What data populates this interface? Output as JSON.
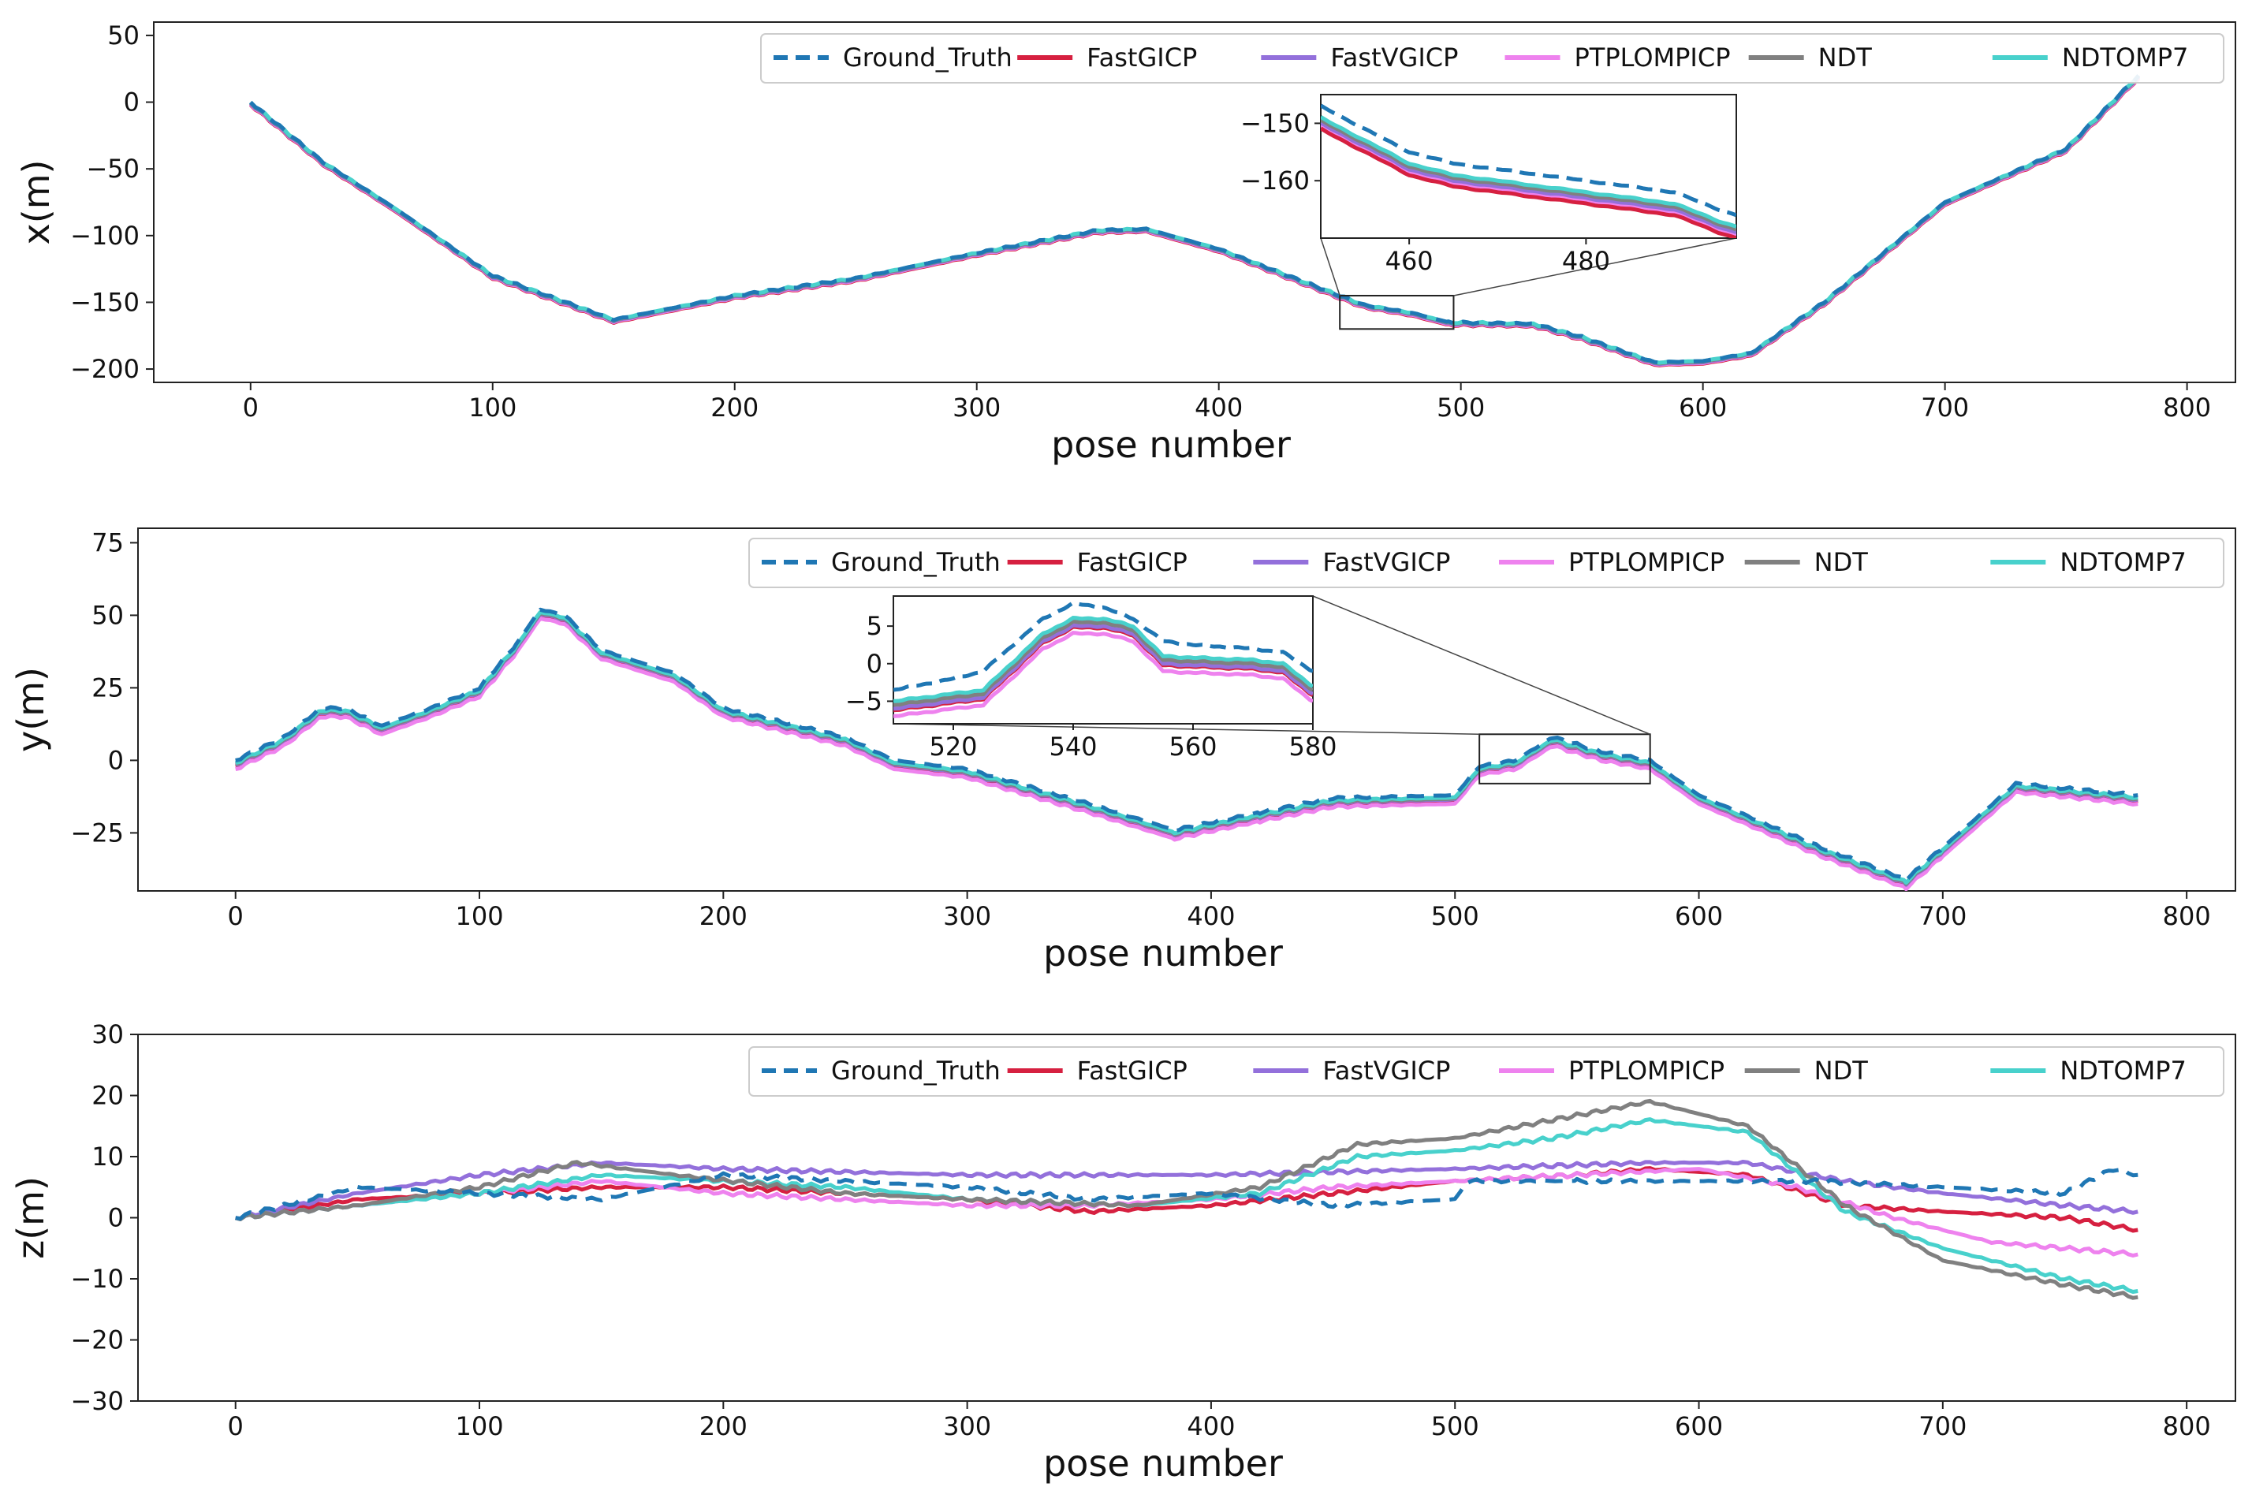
{
  "colors": {
    "Ground_Truth": "#1f77b4",
    "FastGICP": "#d62040",
    "FastVGICP": "#9370db",
    "PTPLOMPICP": "#ee82ee",
    "NDT": "#808080",
    "NDTOMP7": "#48d1cc"
  },
  "chart_data": [
    {
      "id": "x",
      "type": "line",
      "xlabel": "pose number",
      "ylabel": "x(m)",
      "xlim": [
        -40,
        820
      ],
      "ylim": [
        -210,
        60
      ],
      "xticks": [
        0,
        100,
        200,
        300,
        400,
        500,
        600,
        700,
        800
      ],
      "yticks": [
        50,
        0,
        -50,
        -100,
        -150,
        -200
      ],
      "legend": [
        "Ground_Truth",
        "FastGICP",
        "FastVGICP",
        "PTPLOMPICP",
        "NDT",
        "NDTOMP7"
      ],
      "series": [
        {
          "name": "Ground_Truth",
          "style": "dashed",
          "offset": 1.5,
          "x": [
            0,
            30,
            60,
            100,
            150,
            200,
            250,
            300,
            350,
            370,
            400,
            450,
            460,
            480,
            495,
            530,
            550,
            580,
            600,
            620,
            650,
            700,
            750,
            780
          ],
          "y": [
            0,
            -45,
            -80,
            -130,
            -163,
            -145,
            -132,
            -113,
            -96,
            -95,
            -110,
            -145,
            -152,
            -158,
            -165,
            -166,
            -176,
            -195,
            -194,
            -188,
            -150,
            -75,
            -35,
            20
          ]
        },
        {
          "name": "FastGICP",
          "style": "solid",
          "offset": -2,
          "ref": "Ground_Truth"
        },
        {
          "name": "FastVGICP",
          "style": "solid",
          "offset": -1,
          "ref": "Ground_Truth"
        },
        {
          "name": "PTPLOMPICP",
          "style": "solid",
          "offset": -1.5,
          "ref": "Ground_Truth"
        },
        {
          "name": "NDT",
          "style": "solid",
          "offset": -0.5,
          "ref": "Ground_Truth"
        },
        {
          "name": "NDTOMP7",
          "style": "solid",
          "offset": 0,
          "ref": "Ground_Truth"
        }
      ],
      "inset": {
        "xlim": [
          450,
          497
        ],
        "ylim": [
          -170,
          -145
        ],
        "xticks": [
          460,
          480
        ],
        "yticks": [
          -150,
          -160
        ],
        "x": [
          450,
          455,
          460,
          465,
          470,
          480,
          490,
          495,
          497
        ],
        "y": {
          "Ground_Truth": [
            -147,
            -151,
            -155,
            -157,
            -158,
            -160,
            -162,
            -165,
            -166
          ],
          "NDTOMP7": [
            -149,
            -153,
            -157,
            -159,
            -160,
            -162,
            -164,
            -167,
            -168
          ],
          "NDT": [
            -149.5,
            -153.5,
            -157.5,
            -159.5,
            -160.5,
            -162.5,
            -164.5,
            -167.5,
            -168.5
          ],
          "FastVGICP": [
            -150,
            -154,
            -158,
            -160,
            -161,
            -163,
            -165,
            -168,
            -169
          ],
          "PTPLOMPICP": [
            -150.5,
            -154.5,
            -158.5,
            -160.5,
            -161.5,
            -163.5,
            -165.5,
            -168.5,
            -169.5
          ],
          "FastGICP": [
            -151,
            -155,
            -159,
            -161,
            -162,
            -164,
            -166,
            -169,
            -170
          ]
        }
      }
    },
    {
      "id": "y",
      "type": "line",
      "xlabel": "pose number",
      "ylabel": "y(m)",
      "xlim": [
        -40,
        820
      ],
      "ylim": [
        -45,
        80
      ],
      "xticks": [
        0,
        100,
        200,
        300,
        400,
        500,
        600,
        700,
        800
      ],
      "yticks": [
        75,
        50,
        25,
        0,
        -25
      ],
      "legend": [
        "Ground_Truth",
        "FastGICP",
        "FastVGICP",
        "PTPLOMPICP",
        "NDT",
        "NDTOMP7"
      ],
      "series": [
        {
          "name": "Ground_Truth",
          "style": "dashed",
          "offset": 1.5,
          "x": [
            0,
            20,
            35,
            45,
            60,
            80,
            100,
            115,
            125,
            135,
            150,
            180,
            200,
            250,
            270,
            300,
            350,
            385,
            420,
            450,
            500,
            510,
            525,
            540,
            560,
            580,
            600,
            650,
            685,
            700,
            730,
            780
          ],
          "y": [
            0,
            8,
            18,
            18,
            12,
            18,
            25,
            40,
            52,
            50,
            38,
            30,
            18,
            8,
            0,
            -3,
            -15,
            -24,
            -18,
            -13,
            -12,
            -2,
            0,
            8,
            3,
            0,
            -12,
            -30,
            -41,
            -30,
            -8,
            -12
          ]
        },
        {
          "name": "FastGICP",
          "style": "solid",
          "offset": -2,
          "ref": "Ground_Truth"
        },
        {
          "name": "FastVGICP",
          "style": "solid",
          "offset": -1.5,
          "ref": "Ground_Truth"
        },
        {
          "name": "PTPLOMPICP",
          "style": "solid",
          "offset": -3,
          "ref": "Ground_Truth"
        },
        {
          "name": "NDT",
          "style": "solid",
          "offset": -1.2,
          "ref": "Ground_Truth"
        },
        {
          "name": "NDTOMP7",
          "style": "solid",
          "offset": -0.8,
          "ref": "Ground_Truth"
        }
      ],
      "inset": {
        "xlim": [
          510,
          580
        ],
        "ylim": [
          -8,
          9
        ],
        "xticks": [
          520,
          540,
          560,
          580
        ],
        "yticks": [
          5,
          0,
          -5
        ],
        "x": [
          510,
          520,
          525,
          535,
          540,
          545,
          550,
          555,
          560,
          570,
          575,
          580
        ],
        "y": {
          "Ground_Truth": [
            -3.5,
            -2,
            -1,
            6,
            8,
            7.5,
            6,
            3,
            2.5,
            2,
            1.5,
            -1
          ],
          "NDTOMP7": [
            -5,
            -4,
            -3.5,
            4,
            6,
            6,
            5,
            1,
            0.8,
            0.5,
            0,
            -3
          ],
          "NDT": [
            -5.5,
            -4.5,
            -4,
            3.5,
            5.5,
            5.5,
            4.5,
            0.5,
            0.3,
            0,
            -0.5,
            -3.5
          ],
          "FastVGICP": [
            -6,
            -5,
            -4.5,
            3,
            5,
            5,
            4,
            0,
            -0.2,
            -0.5,
            -1,
            -4
          ],
          "FastGICP": [
            -6.2,
            -5.2,
            -4.7,
            2.8,
            4.8,
            4.8,
            3.8,
            -0.2,
            -0.4,
            -0.7,
            -1.2,
            -4.2
          ],
          "PTPLOMPICP": [
            -7,
            -6,
            -5.5,
            2,
            4,
            4,
            3,
            -1,
            -1.2,
            -1.5,
            -2,
            -5
          ]
        }
      }
    },
    {
      "id": "z",
      "type": "line",
      "xlabel": "pose number",
      "ylabel": "z(m)",
      "xlim": [
        -40,
        820
      ],
      "ylim": [
        -30,
        30
      ],
      "xticks": [
        0,
        100,
        200,
        300,
        400,
        500,
        600,
        700,
        800
      ],
      "yticks": [
        30,
        20,
        10,
        0,
        -10,
        -20,
        -30
      ],
      "legend": [
        "Ground_Truth",
        "FastGICP",
        "FastVGICP",
        "PTPLOMPICP",
        "NDT",
        "NDTOMP7"
      ],
      "series": [
        {
          "name": "Ground_Truth",
          "style": "dashed",
          "offset": 0,
          "x": [
            0,
            50,
            100,
            150,
            200,
            300,
            350,
            400,
            450,
            500,
            505,
            550,
            600,
            650,
            700,
            750,
            770,
            780
          ],
          "y": [
            0,
            5,
            4,
            3,
            7,
            5,
            3,
            4,
            2,
            3,
            6,
            6,
            6,
            6,
            5,
            4,
            8,
            7
          ]
        },
        {
          "name": "FastGICP",
          "style": "solid",
          "offset": 0,
          "x": [
            0,
            50,
            100,
            150,
            200,
            250,
            300,
            350,
            400,
            450,
            500,
            550,
            580,
            620,
            660,
            700,
            750,
            780
          ],
          "y": [
            0,
            3,
            4,
            5,
            5,
            4,
            3,
            1,
            2,
            4,
            6,
            7,
            8,
            7,
            2,
            1,
            0,
            -2
          ]
        },
        {
          "name": "FastVGICP",
          "style": "solid",
          "offset": 0,
          "x": [
            0,
            50,
            100,
            150,
            200,
            300,
            400,
            500,
            580,
            620,
            660,
            700,
            750,
            780
          ],
          "y": [
            0,
            4,
            7,
            9,
            8,
            7,
            7,
            8,
            9,
            9,
            6,
            4,
            2,
            1
          ]
        },
        {
          "name": "PTPLOMPICP",
          "style": "solid",
          "offset": 0,
          "x": [
            0,
            50,
            100,
            150,
            200,
            250,
            300,
            350,
            400,
            450,
            500,
            550,
            600,
            640,
            680,
            720,
            780
          ],
          "y": [
            0,
            2,
            4,
            6,
            4,
            3,
            2,
            2,
            3,
            5,
            6,
            7,
            8,
            5,
            0,
            -4,
            -6
          ]
        },
        {
          "name": "NDT",
          "style": "solid",
          "offset": 0,
          "x": [
            0,
            50,
            100,
            140,
            180,
            250,
            300,
            370,
            420,
            460,
            500,
            540,
            580,
            620,
            660,
            700,
            750,
            780
          ],
          "y": [
            0,
            2,
            5,
            9,
            7,
            4,
            3,
            2,
            5,
            12,
            13,
            16,
            19,
            15,
            2,
            -7,
            -11,
            -13
          ]
        },
        {
          "name": "NDTOMP7",
          "style": "solid",
          "offset": 0,
          "x": [
            0,
            50,
            100,
            150,
            200,
            250,
            300,
            370,
            420,
            460,
            500,
            540,
            580,
            620,
            660,
            700,
            750,
            780
          ],
          "y": [
            0,
            2,
            4,
            7,
            6,
            5,
            3,
            2,
            4,
            10,
            11,
            13,
            16,
            14,
            1,
            -5,
            -10,
            -12
          ]
        }
      ]
    }
  ]
}
